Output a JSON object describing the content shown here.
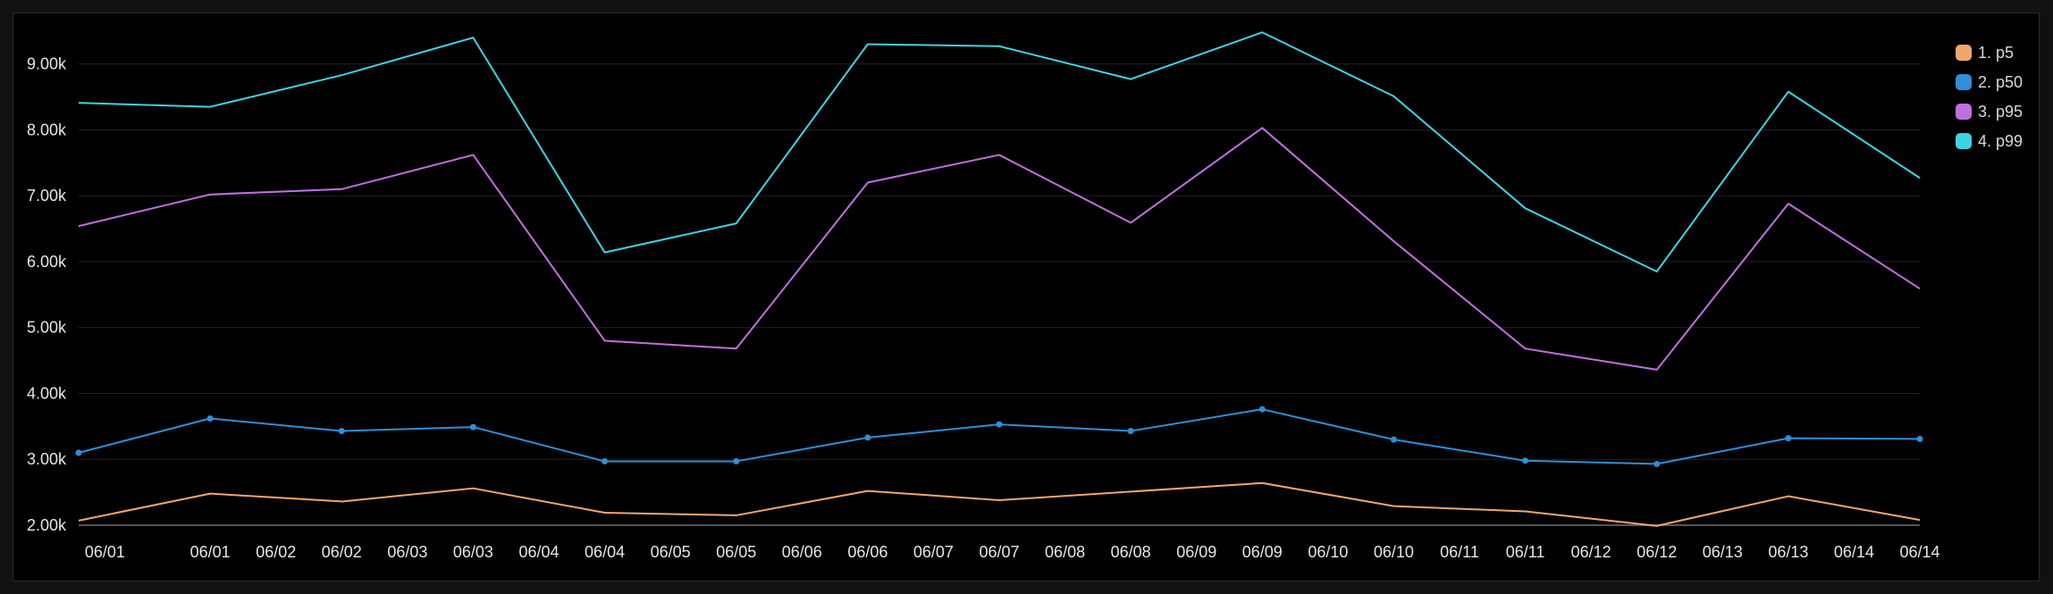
{
  "chart_data": {
    "type": "line",
    "title": "",
    "xlabel": "",
    "ylabel": "",
    "ylim": [
      2000,
      9700
    ],
    "y_ticks": [
      {
        "value": 2000,
        "label": "2.00k"
      },
      {
        "value": 3000,
        "label": "3.00k"
      },
      {
        "value": 4000,
        "label": "4.00k"
      },
      {
        "value": 5000,
        "label": "5.00k"
      },
      {
        "value": 6000,
        "label": "6.00k"
      },
      {
        "value": 7000,
        "label": "7.00k"
      },
      {
        "value": 8000,
        "label": "8.00k"
      },
      {
        "value": 9000,
        "label": "9.00k"
      }
    ],
    "x_tick_labels": [
      "06/01",
      "06/01",
      "06/02",
      "06/02",
      "06/03",
      "06/03",
      "06/04",
      "06/04",
      "06/05",
      "06/05",
      "06/06",
      "06/06",
      "06/07",
      "06/07",
      "06/08",
      "06/08",
      "06/09",
      "06/09",
      "06/10",
      "06/10",
      "06/11",
      "06/11",
      "06/12",
      "06/12",
      "06/13",
      "06/13",
      "06/14",
      "06/14"
    ],
    "x_tick_positions": [
      0.2,
      1.0,
      1.5,
      2.0,
      2.5,
      3.0,
      3.5,
      4.0,
      4.5,
      5.0,
      5.5,
      6.0,
      6.5,
      7.0,
      7.5,
      8.0,
      8.5,
      9.0,
      9.5,
      10.0,
      10.5,
      11.0,
      11.5,
      12.0,
      12.5,
      13.0,
      13.5,
      14.0
    ],
    "x": [
      0,
      1,
      2,
      3,
      4,
      5,
      6,
      7,
      8,
      9,
      10,
      11,
      12,
      13,
      14
    ],
    "xlim": [
      0,
      14
    ],
    "legend_position": "top-right",
    "series": [
      {
        "name": "1. p5",
        "color": "#f2a66d",
        "markers": false,
        "values": [
          2070,
          2480,
          2360,
          2560,
          2190,
          2150,
          2520,
          2380,
          2510,
          2640,
          2290,
          2210,
          1990,
          2440,
          2080
        ]
      },
      {
        "name": "2. p50",
        "color": "#2f8fd8",
        "markers": true,
        "values": [
          3100,
          3620,
          3430,
          3490,
          2970,
          2970,
          3330,
          3530,
          3430,
          3760,
          3300,
          2980,
          2930,
          3320,
          3310
        ]
      },
      {
        "name": "3. p95",
        "color": "#c06fe0",
        "markers": false,
        "values": [
          6540,
          7020,
          7100,
          7620,
          4800,
          4680,
          7200,
          7620,
          6590,
          8030,
          6310,
          4680,
          4360,
          6880,
          5590
        ]
      },
      {
        "name": "4. p99",
        "color": "#3fd3e3",
        "markers": false,
        "values": [
          8410,
          8350,
          8830,
          9400,
          6140,
          6580,
          9300,
          9270,
          8770,
          9480,
          8510,
          6810,
          5850,
          8580,
          7270
        ]
      }
    ],
    "grid": true
  }
}
